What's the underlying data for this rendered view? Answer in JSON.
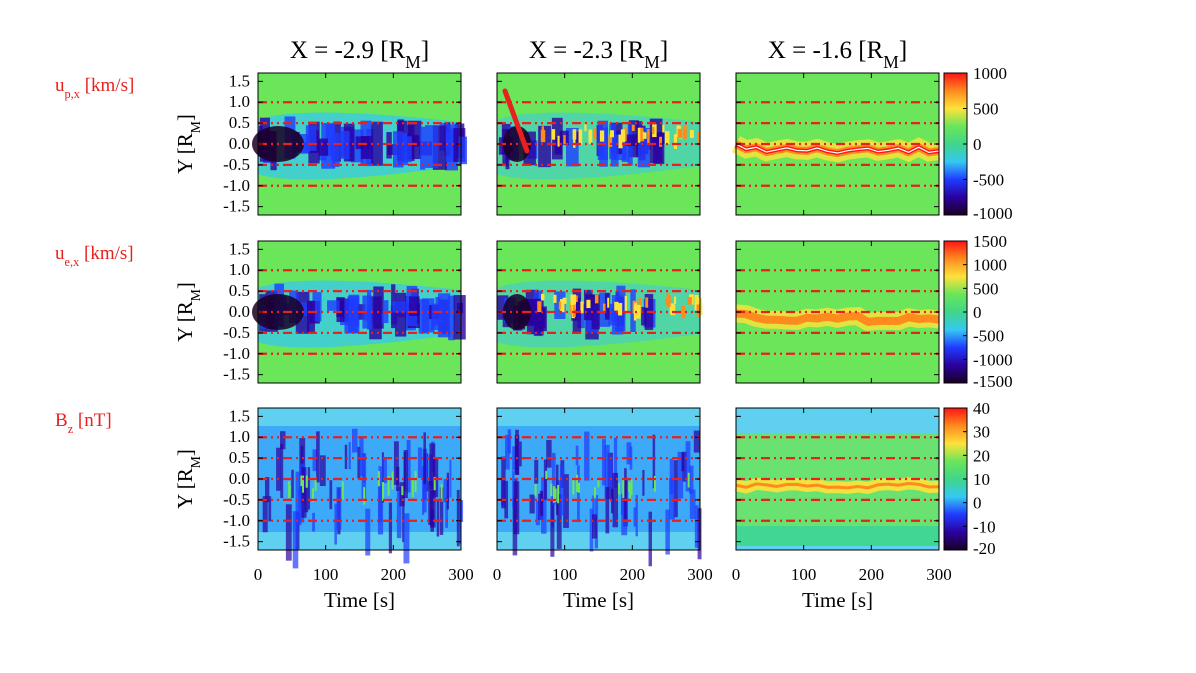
{
  "chart_data": {
    "type": "heatmap",
    "columns": [
      {
        "title_main": "X = -2.9 [R",
        "title_sub": "M",
        "title_end": "]"
      },
      {
        "title_main": "X = -2.3 [R",
        "title_sub": "M",
        "title_end": "]"
      },
      {
        "title_main": "X = -1.6 [R",
        "title_sub": "M",
        "title_end": "]"
      }
    ],
    "rows": [
      {
        "label_main": "u",
        "label_sub": "p,x",
        "label_end": " [km/s]",
        "colorbar": {
          "ticks": [
            1000,
            500,
            0,
            -500,
            -1000
          ],
          "range": [
            -1000,
            1000
          ]
        },
        "background": "#6be55a"
      },
      {
        "label_main": "u",
        "label_sub": "e,x",
        "label_end": " [km/s]",
        "colorbar": {
          "ticks": [
            1500,
            1000,
            500,
            0,
            -500,
            -1000,
            -1500
          ],
          "range": [
            -1500,
            1500
          ]
        },
        "background": "#6be55a"
      },
      {
        "label_main": "B",
        "label_sub": "z",
        "label_end": " [nT]",
        "colorbar": {
          "ticks": [
            40,
            30,
            20,
            10,
            0,
            -10,
            -20
          ],
          "range": [
            -20,
            40
          ]
        },
        "background": "#5fd0ef"
      }
    ],
    "ylabel_main": "Y [R",
    "ylabel_sub": "M",
    "ylabel_end": "]",
    "yticks": [
      "1.5",
      "1.0",
      "0.5",
      "0.0",
      "-0.5",
      "-1.0",
      "-1.5"
    ],
    "ylim": [
      -1.7,
      1.7
    ],
    "xlabel": "Time [s]",
    "xticks": [
      "0",
      "100",
      "200",
      "300"
    ],
    "xlim": [
      0,
      300
    ],
    "reference_lines_y": [
      1.0,
      0.5,
      0.0,
      -0.5,
      -1.0
    ],
    "reference_line_color": "#e8201e",
    "colormap": [
      "#1a0022",
      "#2b00a0",
      "#1f3cff",
      "#35c8f2",
      "#3fd68a",
      "#6be55a",
      "#ffe23a",
      "#ff8a1e",
      "#ff1414"
    ]
  }
}
